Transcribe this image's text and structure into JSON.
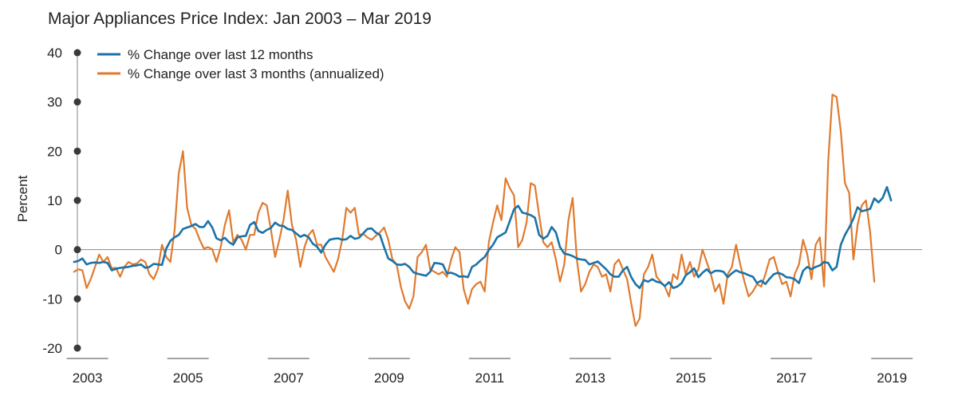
{
  "chart_data": {
    "type": "line",
    "title": "Major Appliances Price Index: Jan 2003 – Mar 2019",
    "ylabel": "Percent",
    "xlabel": "",
    "ylim": [
      -20,
      40
    ],
    "yticks": [
      40,
      30,
      20,
      10,
      0,
      -10,
      -20
    ],
    "x_start": "2002-11",
    "x_range_years": [
      2002.9,
      2019.7
    ],
    "xtick_labels": [
      "2003",
      "2005",
      "2007",
      "2009",
      "2011",
      "2013",
      "2015",
      "2017",
      "2019"
    ],
    "xtick_years": [
      2003,
      2005,
      2007,
      2009,
      2011,
      2013,
      2015,
      2017,
      2019
    ],
    "legend_position": "top-left",
    "series": [
      {
        "name": "% Change over last 12 months",
        "color": "#1a73a8",
        "values": [
          -2.5,
          -2.3,
          -1.8,
          -3.0,
          -2.7,
          -2.6,
          -2.7,
          -2.5,
          -2.7,
          -4.2,
          -3.9,
          -3.7,
          -3.6,
          -3.5,
          -3.3,
          -3.2,
          -3.0,
          -3.7,
          -3.5,
          -2.9,
          -3.0,
          -3.1,
          0.2,
          1.8,
          2.5,
          3.0,
          4.2,
          4.5,
          4.8,
          5.2,
          4.6,
          4.6,
          5.8,
          4.5,
          2.3,
          1.9,
          2.4,
          1.5,
          1.0,
          2.5,
          2.7,
          2.8,
          5.0,
          5.6,
          3.8,
          3.4,
          4.0,
          4.4,
          5.5,
          4.9,
          4.8,
          4.2,
          4.0,
          3.3,
          2.6,
          3.0,
          2.5,
          1.2,
          0.6,
          -0.6,
          1.0,
          2.0,
          2.2,
          2.3,
          2.0,
          2.1,
          2.8,
          2.2,
          2.4,
          3.3,
          4.2,
          4.3,
          3.5,
          3.0,
          0.5,
          -1.8,
          -2.3,
          -3.0,
          -3.1,
          -2.9,
          -3.5,
          -4.6,
          -4.9,
          -5.1,
          -5.3,
          -4.5,
          -2.7,
          -2.8,
          -3.0,
          -4.8,
          -4.7,
          -5.0,
          -5.5,
          -5.4,
          -5.6,
          -3.5,
          -3.0,
          -2.2,
          -1.5,
          -0.1,
          1.0,
          2.5,
          3.0,
          3.5,
          5.8,
          8.2,
          8.9,
          7.5,
          7.3,
          7.0,
          6.5,
          3.0,
          2.2,
          2.8,
          4.6,
          3.5,
          0.5,
          -0.8,
          -1.0,
          -1.3,
          -1.8,
          -2.0,
          -2.1,
          -3.0,
          -2.7,
          -2.4,
          -3.2,
          -4.0,
          -5.0,
          -5.5,
          -5.5,
          -4.2,
          -3.5,
          -5.6,
          -7.0,
          -7.8,
          -6.2,
          -6.5,
          -6.0,
          -6.5,
          -6.7,
          -7.4,
          -6.6,
          -7.8,
          -7.5,
          -6.8,
          -5.2,
          -4.6,
          -3.8,
          -5.6,
          -4.7,
          -4.0,
          -4.8,
          -4.3,
          -4.3,
          -4.5,
          -5.6,
          -4.8,
          -4.2,
          -4.6,
          -4.8,
          -5.2,
          -5.5,
          -6.8,
          -6.3,
          -7.0,
          -5.9,
          -5.0,
          -4.7,
          -5.0,
          -5.6,
          -5.7,
          -6.0,
          -6.8,
          -4.3,
          -3.5,
          -4.0,
          -3.5,
          -3.2,
          -2.5,
          -2.7,
          -4.2,
          -3.5,
          1.0,
          3.0,
          4.5,
          6.3,
          8.6,
          7.8,
          8.0,
          8.3,
          10.4,
          9.6,
          10.5,
          12.7,
          10.0
        ]
      },
      {
        "name": "% Change over last 3 months",
        "name_suffix": "(annualized)",
        "color": "#e07a2e",
        "values": [
          -4.5,
          -4.0,
          -4.2,
          -7.8,
          -6.0,
          -3.5,
          -1.0,
          -2.5,
          -1.5,
          -3.8,
          -3.7,
          -5.5,
          -3.5,
          -2.5,
          -3.0,
          -2.8,
          -2.0,
          -2.5,
          -5.0,
          -6.0,
          -4.0,
          1.0,
          -1.5,
          -2.5,
          4.0,
          15.5,
          20.0,
          8.5,
          5.0,
          4.2,
          2.0,
          0.2,
          0.5,
          0.1,
          -2.5,
          0.5,
          5.0,
          8.0,
          1.5,
          3.0,
          2.0,
          0.0,
          3.0,
          3.0,
          7.5,
          9.5,
          9.0,
          4.0,
          -1.5,
          2.0,
          6.0,
          12.0,
          5.0,
          2.0,
          -3.5,
          0.5,
          3.0,
          4.0,
          1.0,
          1.0,
          -1.5,
          -3.0,
          -4.5,
          -2.0,
          2.0,
          8.5,
          7.5,
          8.5,
          3.0,
          3.2,
          2.5,
          2.0,
          2.8,
          3.5,
          4.5,
          2.0,
          -2.0,
          -3.0,
          -7.5,
          -10.5,
          -12.0,
          -9.5,
          -1.5,
          -0.5,
          1.0,
          -4.0,
          -4.5,
          -5.0,
          -4.5,
          -5.5,
          -2.0,
          0.5,
          -0.5,
          -8.0,
          -11.0,
          -8.0,
          -7.0,
          -6.5,
          -8.5,
          1.5,
          5.5,
          9.0,
          6.0,
          14.5,
          12.5,
          11.0,
          0.5,
          2.0,
          5.5,
          13.5,
          13.0,
          7.0,
          1.5,
          0.5,
          1.5,
          -2.0,
          -6.5,
          -3.0,
          6.0,
          10.5,
          -2.0,
          -8.5,
          -7.0,
          -4.5,
          -3.0,
          -3.5,
          -5.5,
          -5.0,
          -8.5,
          -3.0,
          -2.0,
          -4.0,
          -6.0,
          -11.0,
          -15.5,
          -14.0,
          -5.0,
          -3.5,
          -1.0,
          -5.5,
          -6.5,
          -7.5,
          -9.5,
          -5.0,
          -6.0,
          -1.0,
          -5.0,
          -2.5,
          -5.5,
          -4.0,
          0.0,
          -2.5,
          -5.0,
          -8.5,
          -7.0,
          -11.0,
          -5.0,
          -3.5,
          1.0,
          -3.0,
          -6.5,
          -9.5,
          -8.5,
          -7.0,
          -7.5,
          -5.0,
          -2.0,
          -1.5,
          -4.5,
          -7.0,
          -6.5,
          -9.5,
          -5.0,
          -3.0,
          2.0,
          -1.0,
          -6.0,
          1.0,
          2.5,
          -7.5,
          18.0,
          31.5,
          31.0,
          24.0,
          13.5,
          11.5,
          -2.0,
          5.0,
          9.0,
          10.0,
          3.5,
          -6.5
        ]
      }
    ]
  }
}
